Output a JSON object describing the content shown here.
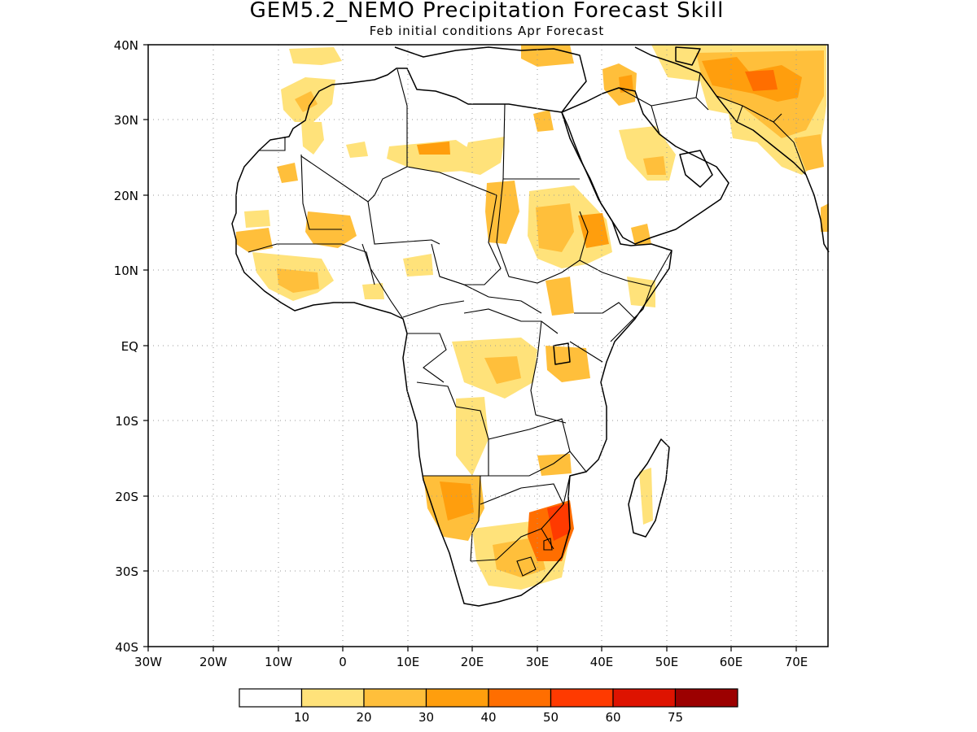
{
  "title": "GEM5.2_NEMO Precipitation Forecast Skill",
  "subtitle": "Feb initial conditions  Apr Forecast",
  "y_ticks": [
    "40N",
    "30N",
    "20N",
    "10N",
    "EQ",
    "10S",
    "20S",
    "30S",
    "40S"
  ],
  "x_ticks": [
    "30W",
    "20W",
    "10W",
    "0",
    "10E",
    "20E",
    "30E",
    "40E",
    "50E",
    "60E",
    "70E"
  ],
  "colorbar": {
    "labels": [
      "10",
      "20",
      "30",
      "40",
      "50",
      "60",
      "75"
    ],
    "colors": [
      "#ffffff",
      "#ffe27a",
      "#ffbf3b",
      "#ff9e0d",
      "#ff6e00",
      "#ff3a00",
      "#de1300",
      "#9c0000"
    ]
  },
  "colors": {
    "frame": "#000000",
    "grid": "#9a9a9a"
  }
}
